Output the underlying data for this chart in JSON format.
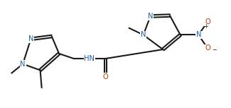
{
  "bg": "#ffffff",
  "lc": "#1a1a1a",
  "nc": "#1a5fa8",
  "oc": "#cc3300",
  "lw": 1.5,
  "fs": 7.2,
  "fs2": 5.8,
  "xlim": [
    0,
    10.5
  ],
  "ylim": [
    0,
    5.2
  ]
}
